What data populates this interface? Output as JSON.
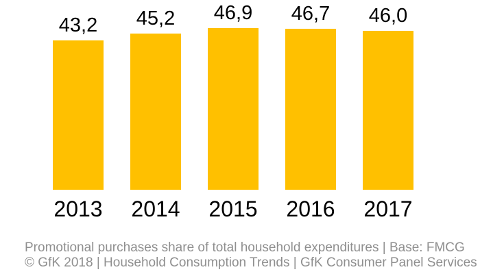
{
  "chart_data": {
    "type": "bar",
    "title": "",
    "xlabel": "",
    "ylabel": "",
    "categories": [
      "2013",
      "2014",
      "2015",
      "2016",
      "2017"
    ],
    "values": [
      43.2,
      45.2,
      46.9,
      46.7,
      46.0
    ],
    "value_labels": [
      "43,2",
      "45,2",
      "46,9",
      "46,7",
      "46,0"
    ],
    "ylim": [
      0,
      55
    ],
    "grid": false,
    "legend": false,
    "bar_color": "#FFC000",
    "label_color": "#000000"
  },
  "footer": {
    "line1": "Promotional purchases share of total household expenditures | Base: FMCG",
    "line2": "© GfK 2018 | Household Consumption Trends | GfK Consumer Panel Services",
    "color": "#8F8F8F"
  }
}
